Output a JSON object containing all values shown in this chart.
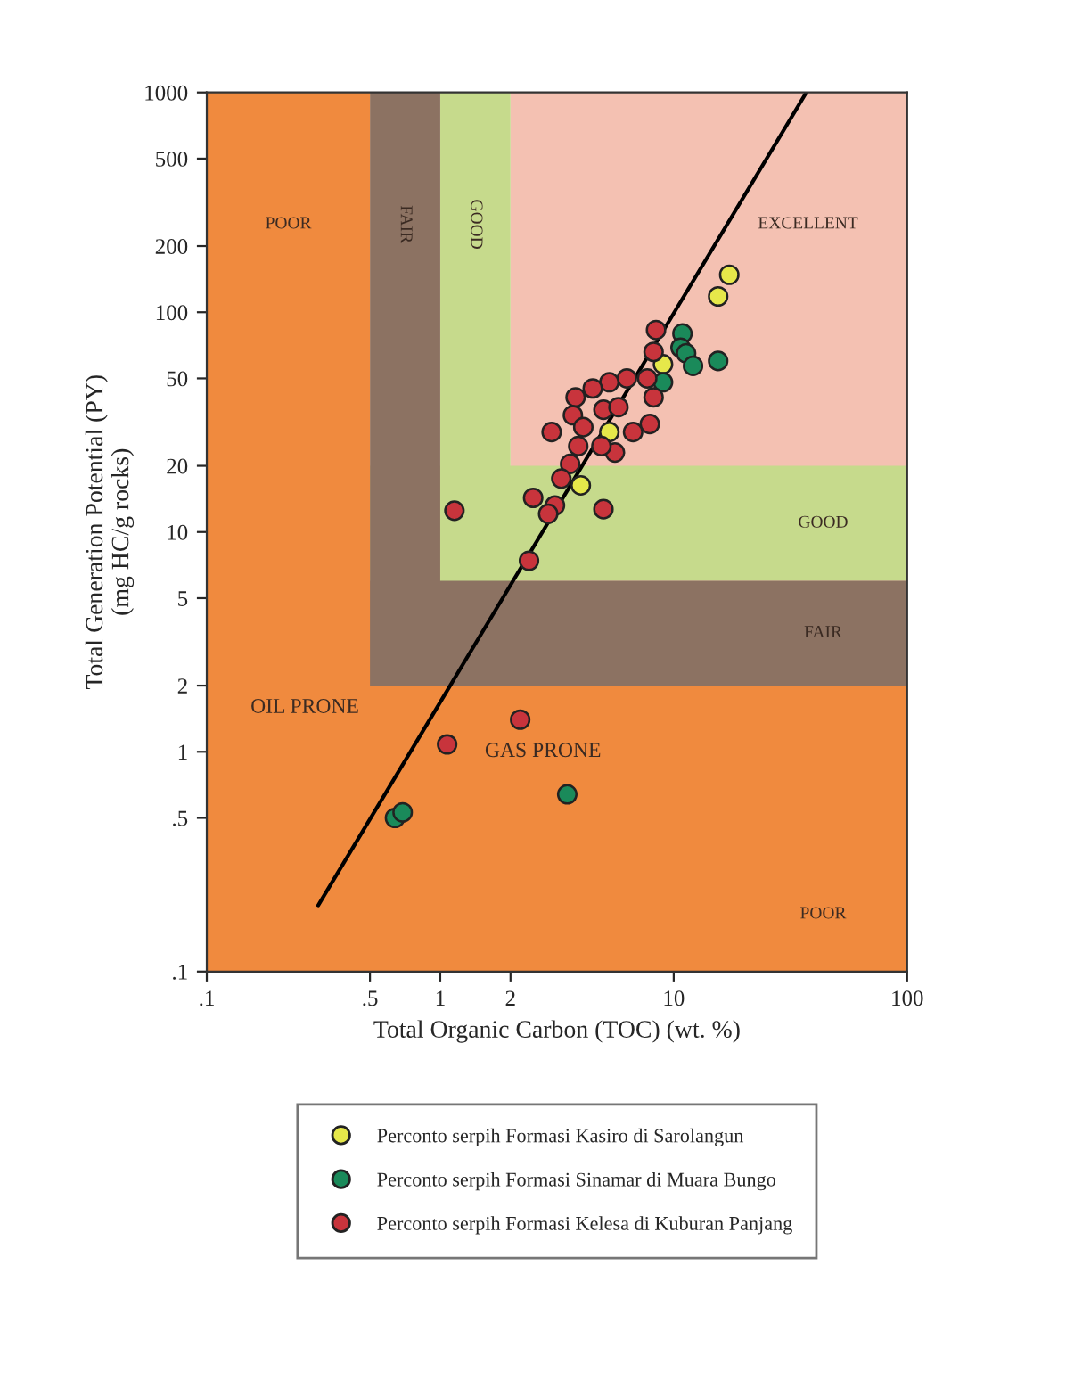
{
  "chart_data": {
    "type": "scatter",
    "xlabel": "Total Organic Carbon (TOC) (wt. %)",
    "ylabel": "Total Generation Potential (PY)\n(mg HC/g rocks)",
    "log": "xy",
    "grid": false,
    "legend": "bottom",
    "marker": "circle",
    "xlim": [
      0.1,
      100
    ],
    "xticks": [
      {
        "value": 0.1,
        "label": ".1"
      },
      {
        "value": 0.5,
        "label": ".5"
      },
      1,
      2,
      10,
      100
    ],
    "ylim": [
      0.1,
      1000
    ],
    "yticks": [
      {
        "value": 0.1,
        "label": ".1"
      },
      {
        "value": 0.5,
        "label": ".5"
      },
      1,
      2,
      5,
      10,
      20,
      50,
      100,
      200,
      500,
      1000
    ],
    "bands": [
      {
        "axis": "x",
        "from": 2,
        "to": 100,
        "color": "#f4c1b2",
        "label": "EXCELLENT"
      },
      {
        "axis": "x",
        "from": 1,
        "to": 2,
        "color": "#c6da8c",
        "label": "GOOD"
      },
      {
        "axis": "y",
        "from": 6,
        "to": 20,
        "color": "#c6da8c",
        "label": "GOOD"
      },
      {
        "axis": "x",
        "from": 0.5,
        "to": 1,
        "color": "#8c7262",
        "label": "FAIR"
      },
      {
        "axis": "y",
        "from": 2,
        "to": 6,
        "color": "#8c7262",
        "label": "FAIR"
      },
      {
        "axis": "x",
        "from": 0.1,
        "to": 0.5,
        "color": "#f08a3e",
        "label": "POOR"
      },
      {
        "axis": "y",
        "from": 0.1,
        "to": 2,
        "color": "#f08a3e",
        "label": "POOR"
      }
    ],
    "annotations": [
      "OIL PRONE",
      "GAS PRONE"
    ],
    "series": [
      {
        "type": "line",
        "marker": "none",
        "color": "#000000",
        "x": [
          0.3,
          37
        ],
        "values": [
          0.2,
          1000
        ]
      },
      {
        "name": "Perconto serpih Formasi Kasiro di Sarolangun",
        "color": "#e6e84a",
        "x": [
          17.3,
          15.5,
          9.0,
          5.3,
          4.0
        ],
        "values": [
          148,
          118,
          58,
          28.5,
          16.3
        ]
      },
      {
        "name": "Perconto serpih Formasi Sinamar di Muara Bungo",
        "color": "#1a8a5a",
        "x": [
          10.9,
          10.7,
          11.3,
          12.1,
          15.5,
          9.0,
          0.64,
          0.69,
          3.5
        ],
        "values": [
          80,
          69,
          65,
          57,
          60,
          48,
          0.5,
          0.53,
          0.64
        ]
      },
      {
        "name": "Perconto serpih Formasi Kelesa di Kuburan Panjang",
        "color": "#c8343c",
        "x": [
          8.4,
          8.2,
          7.7,
          6.3,
          5.3,
          4.5,
          3.8,
          3.7,
          4.1,
          5.0,
          5.8,
          8.2,
          7.9,
          6.7,
          5.6,
          4.9,
          3.9,
          3.0,
          3.6,
          3.3,
          2.5,
          3.1,
          2.9,
          5.0,
          1.15,
          2.4,
          1.07,
          2.2
        ],
        "values": [
          83,
          66,
          50,
          50,
          48,
          45,
          41,
          34,
          30,
          36,
          37,
          41,
          31,
          28.5,
          23,
          24.6,
          24.6,
          28.5,
          20.4,
          17.5,
          14.3,
          13.2,
          12.1,
          12.7,
          12.5,
          7.4,
          1.08,
          1.4
        ]
      }
    ]
  }
}
